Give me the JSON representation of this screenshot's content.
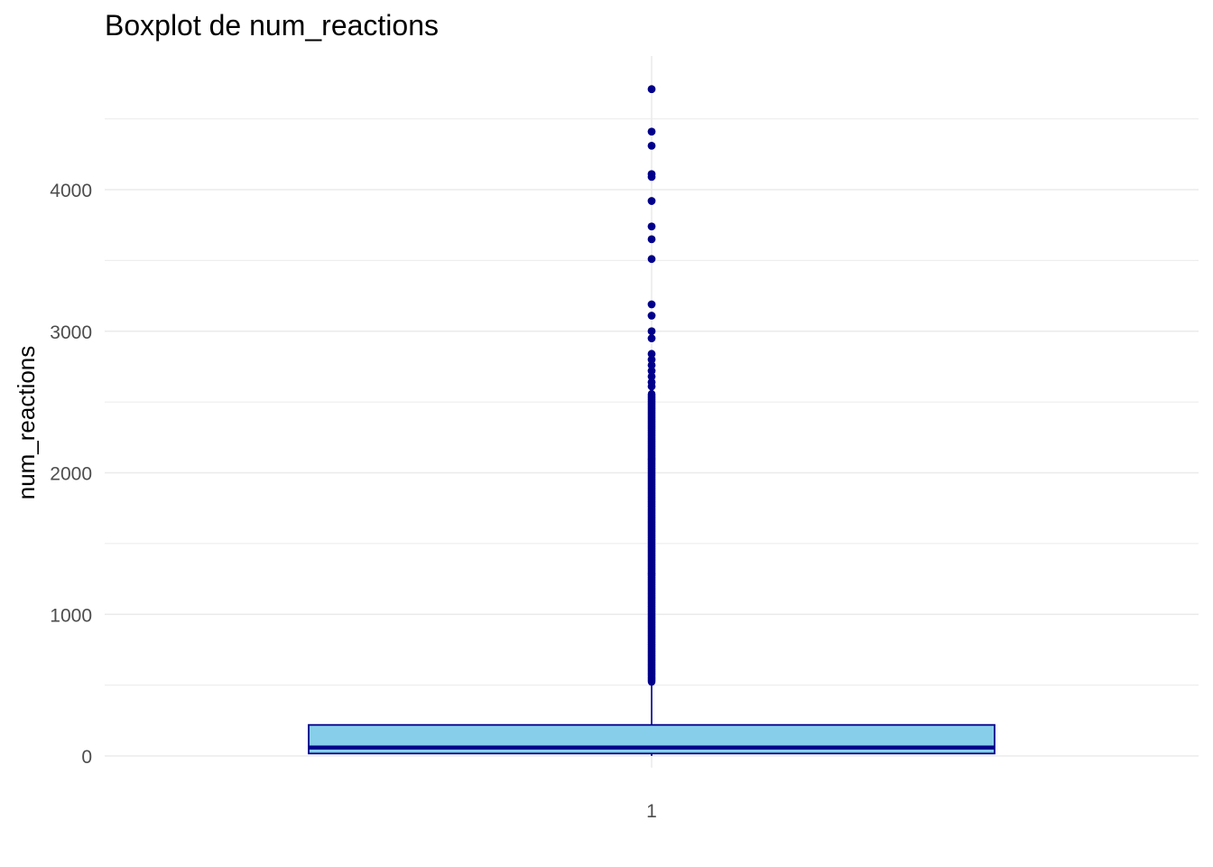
{
  "chart_data": {
    "type": "boxplot",
    "title": "Boxplot de num_reactions",
    "xlabel": "",
    "ylabel": "num_reactions",
    "categories": [
      "1"
    ],
    "yticks": [
      0,
      1000,
      2000,
      3000,
      4000
    ],
    "ylim": [
      -10,
      4950
    ],
    "grid": true,
    "legend": "none",
    "box": {
      "q1": 17,
      "median": 59,
      "q3": 219,
      "whisker_low": 0,
      "whisker_high": 522
    },
    "outliers": [
      4710,
      4410,
      4310,
      4110,
      4090,
      3920,
      3740,
      3650,
      3510,
      3190,
      3110,
      3000,
      2950,
      2840,
      2800,
      2760,
      2720,
      2680,
      2640,
      2610
    ],
    "outlier_dense_range": [
      522,
      2560
    ],
    "colors": {
      "box_fill": "#87CEEB",
      "box_stroke": "#00008B",
      "points": "#00008B",
      "grid": "#ebebeb"
    }
  }
}
